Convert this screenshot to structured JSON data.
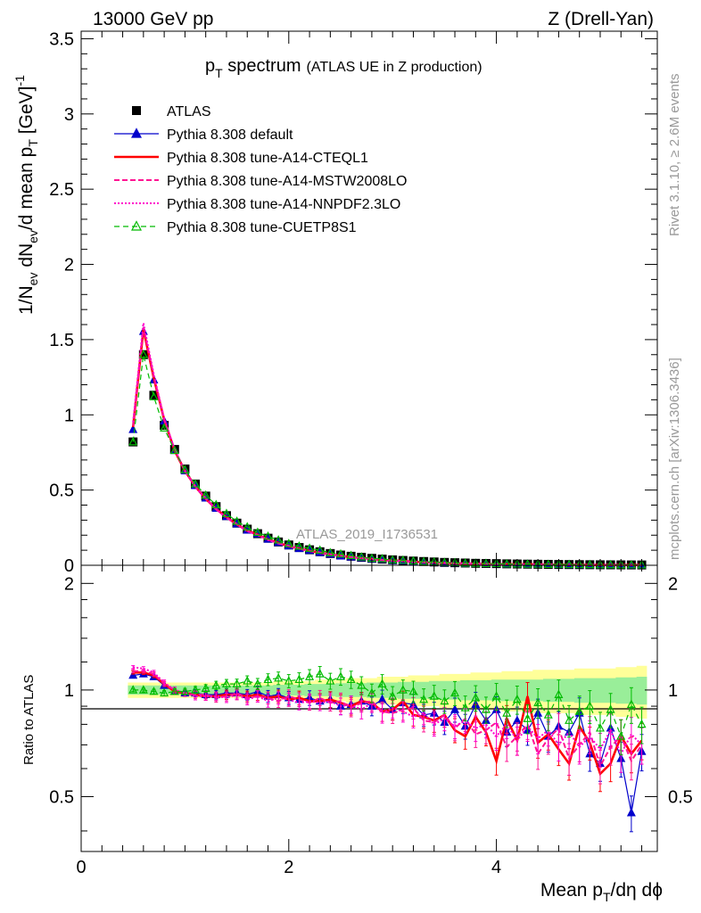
{
  "header": {
    "left": "13000 GeV pp",
    "right": "Z (Drell-Yan)"
  },
  "side_labels": {
    "rivet": "Rivet 3.1.10, ≥ 2.6M events",
    "mcplots": "mcplots.cern.ch [arXiv:1306.3436]"
  },
  "chart_data": {
    "type": "line",
    "title": "pT spectrum (ATLAS UE in Z production)",
    "title_main": "p",
    "title_sub": "T",
    "title_rest": " spectrum",
    "title_paren": "(ATLAS UE in Z production)",
    "watermark": "ATLAS_2019_I1736531",
    "xlabel": "Mean pT/dη dϕ",
    "xlabel_parts": {
      "a": "Mean p",
      "sub": "T",
      "b": "/dη dϕ"
    },
    "ylabel": "1/Nev dNev/d mean pT [GeV]^-1",
    "ylabel_parts": {
      "a": "1/N",
      "sub1": "ev",
      "b": " dN",
      "sub2": "ev",
      "c": "/d mean p",
      "sub3": "T",
      "d": "  [GeV]",
      "sup": "-1"
    },
    "ratio_ylabel": "Ratio to ATLAS",
    "xlim": [
      0,
      5.55
    ],
    "ylim": [
      0,
      3.55
    ],
    "ratio_ylim": [
      0.35,
      2.25
    ],
    "x_ticks": [
      "0",
      "2",
      "4"
    ],
    "x_tick_values": [
      0,
      2,
      4
    ],
    "y_ticks": [
      "0",
      "0.5",
      "1",
      "1.5",
      "2",
      "2.5",
      "3",
      "3.5"
    ],
    "y_tick_values": [
      0,
      0.5,
      1,
      1.5,
      2,
      2.5,
      3,
      3.5
    ],
    "ratio_ticks": [
      "0.5",
      "1",
      "2"
    ],
    "ratio_tick_values": [
      0.5,
      1,
      2
    ],
    "colors": {
      "atlas": "#000000",
      "default": "#0000cc",
      "cteql1": "#ff0000",
      "mstw": "#ff1493",
      "nnpdf": "#ff00cc",
      "cuetp8s1": "#00bb00",
      "band_yellow": "#ffff99",
      "band_green": "#99ee99"
    },
    "legend": {
      "position": "top-left",
      "entries": [
        "ATLAS",
        "Pythia 8.308 default",
        "Pythia 8.308 tune-A14-CTEQL1",
        "Pythia 8.308 tune-A14-MSTW2008LO",
        "Pythia 8.308 tune-A14-NNPDF2.3LO",
        "Pythia 8.308 tune-CUETP8S1"
      ]
    },
    "x": [
      0.5,
      0.6,
      0.7,
      0.8,
      0.9,
      1.0,
      1.1,
      1.2,
      1.3,
      1.4,
      1.5,
      1.6,
      1.7,
      1.8,
      1.9,
      2.0,
      2.1,
      2.2,
      2.3,
      2.4,
      2.5,
      2.6,
      2.7,
      2.8,
      2.9,
      3.0,
      3.1,
      3.2,
      3.3,
      3.4,
      3.5,
      3.6,
      3.7,
      3.8,
      3.9,
      4.0,
      4.1,
      4.2,
      4.3,
      4.4,
      4.5,
      4.6,
      4.7,
      4.8,
      4.9,
      5.0,
      5.1,
      5.2,
      5.3,
      5.4
    ],
    "atlas": [
      0.82,
      1.4,
      1.13,
      0.93,
      0.77,
      0.64,
      0.54,
      0.46,
      0.39,
      0.33,
      0.28,
      0.24,
      0.21,
      0.18,
      0.155,
      0.135,
      0.118,
      0.103,
      0.09,
      0.078,
      0.068,
      0.06,
      0.053,
      0.046,
      0.041,
      0.036,
      0.032,
      0.028,
      0.025,
      0.022,
      0.019,
      0.017,
      0.015,
      0.013,
      0.012,
      0.011,
      0.0095,
      0.0085,
      0.0075,
      0.0067,
      0.006,
      0.0053,
      0.0047,
      0.0042,
      0.0037,
      0.0033,
      0.003,
      0.0027,
      0.0024,
      0.0021
    ],
    "band_yellow_halfwidth": [
      0.05,
      0.05,
      0.05,
      0.05,
      0.05,
      0.05,
      0.05,
      0.05,
      0.05,
      0.05,
      0.05,
      0.05,
      0.05,
      0.05,
      0.06,
      0.06,
      0.06,
      0.06,
      0.07,
      0.07,
      0.07,
      0.08,
      0.08,
      0.08,
      0.09,
      0.09,
      0.09,
      0.1,
      0.1,
      0.1,
      0.11,
      0.11,
      0.11,
      0.12,
      0.12,
      0.12,
      0.13,
      0.13,
      0.13,
      0.14,
      0.14,
      0.14,
      0.14,
      0.15,
      0.15,
      0.15,
      0.15,
      0.16,
      0.16,
      0.17
    ],
    "band_green_halfwidth": [
      0.03,
      0.03,
      0.03,
      0.03,
      0.03,
      0.03,
      0.03,
      0.03,
      0.03,
      0.03,
      0.03,
      0.03,
      0.03,
      0.03,
      0.035,
      0.035,
      0.035,
      0.04,
      0.04,
      0.04,
      0.045,
      0.045,
      0.045,
      0.05,
      0.05,
      0.05,
      0.055,
      0.055,
      0.055,
      0.06,
      0.06,
      0.06,
      0.065,
      0.065,
      0.065,
      0.07,
      0.07,
      0.07,
      0.07,
      0.07,
      0.075,
      0.075,
      0.075,
      0.08,
      0.08,
      0.08,
      0.08,
      0.085,
      0.085,
      0.09
    ],
    "series": [
      {
        "name": "Pythia 8.308 default",
        "key": "default",
        "ratio": [
          1.1,
          1.11,
          1.09,
          1.03,
          0.99,
          0.98,
          0.98,
          0.97,
          0.97,
          0.98,
          0.98,
          0.97,
          0.99,
          0.96,
          0.97,
          0.95,
          0.94,
          0.95,
          0.93,
          0.94,
          0.9,
          0.91,
          0.93,
          0.9,
          0.94,
          0.88,
          0.92,
          0.91,
          0.85,
          0.86,
          0.81,
          0.88,
          0.79,
          0.91,
          0.82,
          0.88,
          0.76,
          0.82,
          0.77,
          0.86,
          0.74,
          0.79,
          0.76,
          0.86,
          0.66,
          0.62,
          0.78,
          0.64,
          0.45,
          0.67
        ]
      },
      {
        "name": "Pythia 8.308 tune-A14-CTEQL1",
        "key": "cteql1",
        "ratio": [
          1.12,
          1.12,
          1.1,
          1.04,
          0.99,
          0.98,
          0.97,
          0.96,
          0.96,
          0.97,
          0.97,
          0.96,
          0.97,
          0.95,
          0.96,
          0.94,
          0.95,
          0.93,
          0.93,
          0.94,
          0.92,
          0.9,
          0.93,
          0.92,
          0.87,
          0.88,
          0.93,
          0.85,
          0.84,
          0.82,
          0.85,
          0.77,
          0.74,
          0.84,
          0.76,
          0.63,
          0.83,
          0.72,
          0.96,
          0.71,
          0.75,
          0.68,
          0.62,
          0.79,
          0.71,
          0.58,
          0.62,
          0.74,
          0.66,
          0.72
        ]
      },
      {
        "name": "Pythia 8.308 tune-A14-MSTW2008LO",
        "key": "mstw",
        "ratio": [
          1.13,
          1.13,
          1.11,
          1.04,
          1.0,
          0.98,
          0.97,
          0.97,
          0.95,
          0.96,
          0.98,
          0.95,
          0.96,
          0.95,
          0.93,
          0.96,
          0.94,
          0.92,
          0.95,
          0.92,
          0.93,
          0.89,
          0.92,
          0.93,
          0.87,
          0.86,
          0.88,
          0.89,
          0.82,
          0.81,
          0.85,
          0.78,
          0.83,
          0.75,
          0.77,
          0.81,
          0.69,
          0.74,
          0.8,
          0.66,
          0.73,
          0.78,
          0.64,
          0.7,
          0.76,
          0.61,
          0.69,
          0.74,
          0.63,
          0.7
        ]
      },
      {
        "name": "Pythia 8.308 tune-A14-NNPDF2.3LO",
        "key": "nnpdf",
        "ratio": [
          1.16,
          1.15,
          1.12,
          1.05,
          1.0,
          0.98,
          0.96,
          0.96,
          0.96,
          0.95,
          0.97,
          0.94,
          0.96,
          0.93,
          0.95,
          0.94,
          0.92,
          0.93,
          0.92,
          0.93,
          0.9,
          0.91,
          0.88,
          0.92,
          0.86,
          0.89,
          0.87,
          0.84,
          0.86,
          0.8,
          0.83,
          0.79,
          0.82,
          0.78,
          0.8,
          0.74,
          0.8,
          0.72,
          0.79,
          0.73,
          0.77,
          0.7,
          0.76,
          0.69,
          0.74,
          0.68,
          0.77,
          0.66,
          0.75,
          0.7
        ]
      },
      {
        "name": "Pythia 8.308 tune-CUETP8S1",
        "key": "cuetp8s1",
        "ratio": [
          1.0,
          1.0,
          0.99,
          0.98,
          0.99,
          0.99,
          1.0,
          1.01,
          1.03,
          1.04,
          1.04,
          1.06,
          1.04,
          1.07,
          1.08,
          1.06,
          1.07,
          1.09,
          1.11,
          1.06,
          1.09,
          1.07,
          1.03,
          0.98,
          1.04,
          0.96,
          1.0,
          0.99,
          0.94,
          0.96,
          0.93,
          0.98,
          0.89,
          0.95,
          0.88,
          0.96,
          0.86,
          0.94,
          0.83,
          0.92,
          0.85,
          0.97,
          0.82,
          0.87,
          0.9,
          0.78,
          0.88,
          0.74,
          0.91,
          0.8
        ]
      }
    ]
  }
}
